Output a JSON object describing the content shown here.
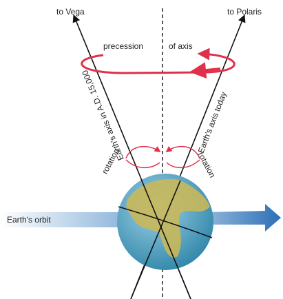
{
  "labels": {
    "vega": "to Vega",
    "polaris": "to Polaris",
    "precession": "precession",
    "of_axis": "of axis",
    "axis_future": "Earth's axis in A.D. 15,000",
    "axis_today": "Earth's axis today",
    "rotation_left": "rotation",
    "rotation_right": "rotation",
    "orbit": "Earth's orbit"
  }
}
